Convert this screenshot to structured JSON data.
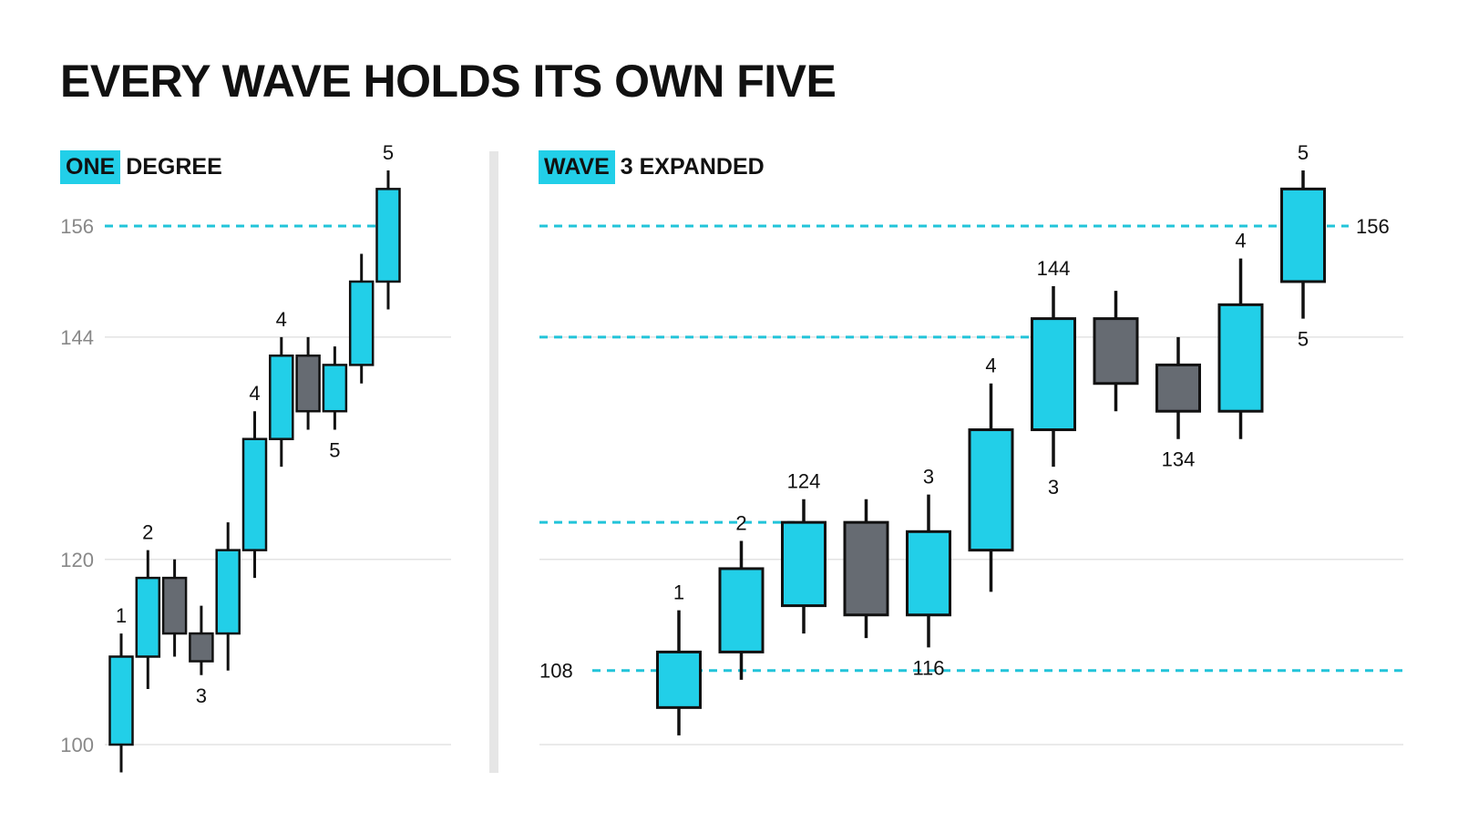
{
  "title": "EVERY WAVE HOLDS ITS OWN FIVE",
  "colors": {
    "up": "#22cfe8",
    "down": "#666b72",
    "outline": "#111111",
    "dashed": "#22c4d9",
    "grid": "#e3e3e3",
    "tick": "#888888"
  },
  "chart_data": [
    {
      "type": "candlestick",
      "label_highlight": "ONE",
      "label_rest": "DEGREE",
      "ylim": [
        100,
        156
      ],
      "y_ticks": [
        100,
        120,
        144,
        156
      ],
      "dashed_levels": [
        156
      ],
      "candles": [
        {
          "open": 100,
          "close": 109.5,
          "high": 112,
          "low": 97,
          "dir": "up"
        },
        {
          "open": 109.5,
          "close": 118,
          "high": 121,
          "low": 106,
          "dir": "up"
        },
        {
          "open": 118,
          "close": 112,
          "high": 120,
          "low": 109.5,
          "dir": "down"
        },
        {
          "open": 112,
          "close": 109,
          "high": 115,
          "low": 107.5,
          "dir": "down"
        },
        {
          "open": 112,
          "close": 121,
          "high": 124,
          "low": 108,
          "dir": "up"
        },
        {
          "open": 121,
          "close": 133,
          "high": 136,
          "low": 118,
          "dir": "up"
        },
        {
          "open": 133,
          "close": 142,
          "high": 144,
          "low": 130,
          "dir": "up"
        },
        {
          "open": 142,
          "close": 136,
          "high": 144,
          "low": 134,
          "dir": "down"
        },
        {
          "open": 136,
          "close": 141,
          "high": 143,
          "low": 134,
          "dir": "up"
        },
        {
          "open": 141,
          "close": 150,
          "high": 153,
          "low": 139,
          "dir": "up"
        },
        {
          "open": 150,
          "close": 160,
          "high": 162,
          "low": 147,
          "dir": "up"
        }
      ],
      "annotations": [
        {
          "index": 0,
          "text": "1",
          "pos": "above"
        },
        {
          "index": 1,
          "text": "2",
          "pos": "above"
        },
        {
          "index": 3,
          "text": "3",
          "pos": "below"
        },
        {
          "index": 5,
          "text": "4",
          "pos": "above"
        },
        {
          "index": 6,
          "text": "4",
          "pos": "above"
        },
        {
          "index": 8,
          "text": "5",
          "pos": "below"
        },
        {
          "index": 10,
          "text": "5",
          "pos": "above"
        }
      ]
    },
    {
      "type": "candlestick",
      "label_highlight": "WAVE",
      "label_rest": "3 EXPANDED",
      "ylim": [
        100,
        156
      ],
      "dashed_levels": [
        {
          "value": 108,
          "label": "108"
        },
        {
          "value": 124,
          "label": ""
        },
        {
          "value": 144,
          "label": ""
        },
        {
          "value": 156,
          "label": "156"
        }
      ],
      "candles": [
        {
          "open": 104,
          "close": 110,
          "high": 114.5,
          "low": 101,
          "dir": "up"
        },
        {
          "open": 110,
          "close": 119,
          "high": 122,
          "low": 107,
          "dir": "up"
        },
        {
          "open": 115,
          "close": 124,
          "high": 126.5,
          "low": 112,
          "dir": "up"
        },
        {
          "open": 124,
          "close": 114,
          "high": 126.5,
          "low": 111.5,
          "dir": "down"
        },
        {
          "open": 114,
          "close": 123,
          "high": 127,
          "low": 110.5,
          "dir": "up"
        },
        {
          "open": 121,
          "close": 134,
          "high": 139,
          "low": 116.5,
          "dir": "up"
        },
        {
          "open": 134,
          "close": 146,
          "high": 149.5,
          "low": 130,
          "dir": "up"
        },
        {
          "open": 146,
          "close": 139,
          "high": 149,
          "low": 136,
          "dir": "down"
        },
        {
          "open": 141,
          "close": 136,
          "high": 144,
          "low": 133,
          "dir": "down"
        },
        {
          "open": 136,
          "close": 147.5,
          "high": 152.5,
          "low": 133,
          "dir": "up"
        },
        {
          "open": 150,
          "close": 160,
          "high": 162,
          "low": 146,
          "dir": "up"
        }
      ],
      "annotations": [
        {
          "index": 0,
          "text": "1",
          "pos": "above"
        },
        {
          "index": 1,
          "text": "2",
          "pos": "above"
        },
        {
          "index": 2,
          "text": "124",
          "pos": "above"
        },
        {
          "index": 4,
          "text": "3",
          "pos": "above"
        },
        {
          "index": 4,
          "text": "116",
          "pos": "below"
        },
        {
          "index": 5,
          "text": "4",
          "pos": "above"
        },
        {
          "index": 6,
          "text": "144",
          "pos": "above"
        },
        {
          "index": 6,
          "text": "3",
          "pos": "below"
        },
        {
          "index": 8,
          "text": "134",
          "pos": "below"
        },
        {
          "index": 9,
          "text": "4",
          "pos": "above"
        },
        {
          "index": 10,
          "text": "5",
          "pos": "above"
        },
        {
          "index": 10,
          "text": "5",
          "pos": "below"
        }
      ]
    }
  ]
}
